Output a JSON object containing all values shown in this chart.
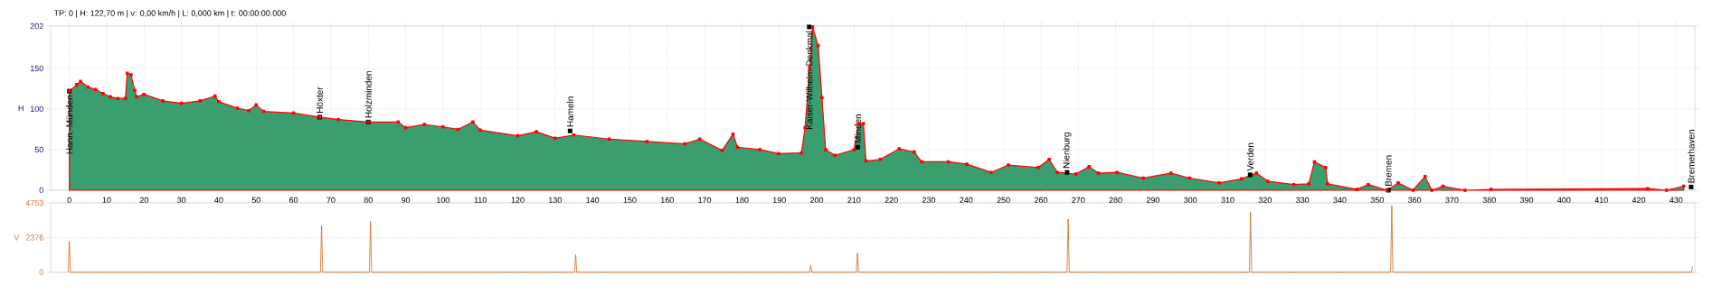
{
  "chart_data": [
    {
      "type": "area",
      "title": "TP: 0 | H: 122,70 m | v: 0,00 km/h | L: 0,000 km | t: 00:00:00.000",
      "ylabel": "H",
      "x": [
        0,
        2,
        3,
        5,
        7,
        9,
        11,
        13,
        15,
        15.5,
        16.5,
        17.5,
        18,
        20,
        25,
        30,
        35,
        39,
        40,
        45,
        48,
        50,
        52,
        60,
        67,
        72,
        80,
        88,
        90,
        95,
        100,
        104,
        108,
        110,
        120,
        125,
        130,
        135,
        144.5,
        154.6,
        164.7,
        168.7,
        174.7,
        177.6,
        178.8,
        184.8,
        189.8,
        195.9,
        196.9,
        198.1,
        198.9,
        200.4,
        201.4,
        202.4,
        204.9,
        210,
        211.2,
        212.5,
        213.2,
        217,
        222.1,
        226.1,
        228.1,
        235.2,
        240.2,
        246.7,
        251.3,
        259.3,
        262.2,
        264.4,
        269.4,
        272.9,
        275.4,
        280.4,
        287.4,
        294.8,
        299.8,
        307.7,
        313.7,
        317.7,
        320.7,
        327.7,
        331.7,
        333.2,
        336.2,
        336.7,
        344.6,
        347.6,
        352.6,
        355.6,
        359.6,
        362.8,
        364.6,
        367.6,
        373.5,
        380.5,
        422.4,
        427.4,
        432
      ],
      "series": [
        {
          "color": "#3a9e6e",
          "values": [
            122,
            130,
            134,
            127,
            124,
            119,
            115,
            113,
            113,
            144,
            142,
            123,
            115,
            118,
            110,
            107,
            110,
            116,
            109,
            101,
            98,
            105,
            97,
            95,
            90,
            87,
            84,
            84,
            77,
            81,
            78,
            75,
            84,
            74,
            67,
            72,
            64,
            68,
            63,
            60,
            57,
            63,
            49,
            69,
            53,
            50,
            45,
            46,
            77,
            151,
            201,
            178,
            114,
            50,
            43,
            50,
            82,
            82,
            36,
            38,
            51,
            47,
            35,
            35,
            32,
            22,
            31,
            28,
            38,
            22,
            20,
            29,
            21,
            22,
            15,
            21,
            15,
            9,
            14,
            21,
            11,
            7,
            8,
            35,
            28,
            8,
            1,
            7,
            0,
            9,
            0,
            17,
            0,
            5,
            0,
            1,
            2,
            0,
            5
          ]
        }
      ],
      "xlim": [
        -5,
        435
      ],
      "ylim": [
        0,
        202
      ],
      "xticks": [
        0,
        10,
        20,
        30,
        40,
        50,
        60,
        70,
        80,
        90,
        100,
        110,
        120,
        130,
        140,
        150,
        160,
        170,
        180,
        190,
        200,
        210,
        220,
        230,
        240,
        250,
        260,
        270,
        280,
        290,
        300,
        310,
        320,
        330,
        340,
        350,
        360,
        370,
        380,
        390,
        400,
        410,
        420,
        430
      ],
      "yticks": [
        0,
        50,
        100,
        150,
        202
      ],
      "grid": true,
      "marker": "square",
      "annotations": [
        {
          "text": "Hann.-Münden",
          "x": 0,
          "y": 122
        },
        {
          "text": "Höxter",
          "x": 67,
          "y": 90
        },
        {
          "text": "Holzminden",
          "x": 80,
          "y": 84
        },
        {
          "text": "Hameln",
          "x": 134,
          "y": 73
        },
        {
          "text": "Kaiser-Wilhelm-Denkmal",
          "x": 198,
          "y": 201
        },
        {
          "text": "Minden",
          "x": 211,
          "y": 53
        },
        {
          "text": "Nienburg",
          "x": 267,
          "y": 22
        },
        {
          "text": "Verden",
          "x": 316,
          "y": 19
        },
        {
          "text": "Bremen",
          "x": 353,
          "y": 0
        },
        {
          "text": "Bremerhaven",
          "x": 434,
          "y": 4
        }
      ]
    },
    {
      "type": "line",
      "ylabel": "V",
      "x": [
        -0.3,
        0,
        0.3,
        67.2,
        67.5,
        67.8,
        80.3,
        80.6,
        80.9,
        135.2,
        135.5,
        135.8,
        198.1,
        198.4,
        198.7,
        210.6,
        210.9,
        211.2,
        267,
        267.3,
        267.6,
        315.8,
        316.1,
        316.4,
        353.6,
        353.9,
        354.2,
        434.1,
        434.4
      ],
      "series": [
        {
          "color": "#d2691e",
          "values": [
            0,
            2120,
            0,
            0,
            3200,
            0,
            0,
            3510,
            0,
            0,
            1210,
            0,
            0,
            490,
            0,
            0,
            1320,
            0,
            0,
            3640,
            0,
            0,
            4110,
            0,
            0,
            4550,
            0,
            0,
            410
          ]
        }
      ],
      "xlim": [
        -5,
        435
      ],
      "ylim": [
        0,
        4753
      ],
      "yticks": [
        0,
        2376,
        4753
      ],
      "grid": "y",
      "tick_labels": "y"
    }
  ]
}
